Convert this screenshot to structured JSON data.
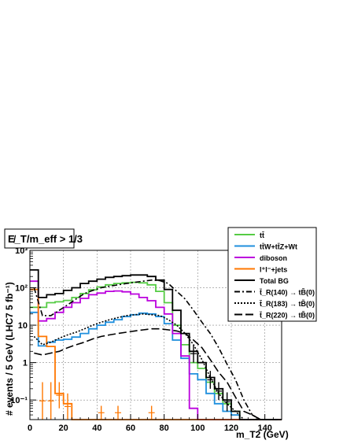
{
  "chart_data": {
    "type": "line",
    "title": "E̸_T/m_eff > 1/3",
    "xlabel": "m_T2 (GeV)",
    "ylabel": "# events / 5 GeV  (LHC7 5 fb⁻¹)",
    "xlim": [
      0,
      150
    ],
    "ylim": [
      0.03,
      1000
    ],
    "yscale": "log",
    "bin_width": 5,
    "grid": true,
    "legend_position": "top-right",
    "x_ticks": [
      "0",
      "20",
      "40",
      "60",
      "80",
      "100",
      "120",
      "140"
    ],
    "y_ticks": [
      {
        "value": 1000,
        "label": "10³"
      },
      {
        "value": 100,
        "label": "10²"
      },
      {
        "value": 10,
        "label": "10"
      },
      {
        "value": 1,
        "label": "1"
      },
      {
        "value": 0.1,
        "label": "10⁻¹"
      }
    ],
    "series": [
      {
        "name": "tt̄",
        "style": "hist",
        "color": "#55cc44",
        "dash": "",
        "values": [
          30,
          30,
          40,
          42,
          46,
          55,
          70,
          88,
          105,
          120,
          130,
          135,
          140,
          135,
          120,
          80,
          40,
          10,
          3,
          1.0,
          0.7,
          0.3,
          0.15,
          0.08,
          0.05,
          0.03,
          0.03,
          0.03,
          0.03,
          0.03
        ]
      },
      {
        "name": "tt̄W+tt̄Z+Wt",
        "style": "hist",
        "color": "#1f8fdd",
        "dash": "",
        "values": [
          22,
          2.8,
          3.5,
          4,
          4.2,
          4.8,
          6,
          8,
          10,
          12,
          14,
          17,
          19,
          21,
          20,
          17,
          11,
          4,
          1.3,
          0.5,
          0.35,
          0.15,
          0.08,
          0.05,
          0.04,
          0.03,
          0.03,
          0.03,
          0.03,
          0.03
        ]
      },
      {
        "name": "diboson",
        "style": "hist",
        "color": "#bb00dd",
        "dash": "",
        "values": [
          150,
          13,
          15,
          22,
          30,
          40,
          52,
          65,
          72,
          80,
          82,
          78,
          68,
          55,
          45,
          30,
          20,
          6,
          1.5,
          0.06,
          0.03,
          0.03,
          0.03,
          0.03,
          0.03,
          0.03,
          0.03,
          0.03,
          0.03,
          0.03
        ]
      },
      {
        "name": "l⁺l⁻+jets",
        "style": "hist",
        "color": "#ff7700",
        "dash": "",
        "values": [
          90,
          5,
          2.7,
          0.15,
          0.08,
          0.03,
          0.03,
          0.03,
          0.03,
          0.03,
          0.03,
          0.03,
          0.03,
          0.03,
          0.03,
          0.03,
          0.03,
          0.03,
          0.03,
          0.03,
          0.03,
          0.03,
          0.03,
          0.03,
          0.03,
          0.03,
          0.03,
          0.03,
          0.03,
          0.03
        ]
      },
      {
        "name": "Total BG",
        "style": "hist",
        "color": "#000000",
        "dash": "",
        "values": [
          300,
          55,
          65,
          70,
          85,
          100,
          130,
          150,
          170,
          190,
          200,
          210,
          220,
          220,
          200,
          160,
          90,
          25,
          6,
          2.0,
          1.0,
          0.4,
          0.2,
          0.1,
          0.05,
          0.03,
          0.03,
          0.03,
          0.03,
          0.03
        ]
      },
      {
        "name": "t̃_R(140) → tB̃(0)",
        "style": "line",
        "color": "#000000",
        "dash": "7,3,2,3",
        "values": [
          100,
          18,
          18,
          25,
          35,
          50,
          70,
          85,
          100,
          110,
          120,
          130,
          140,
          150,
          160,
          155,
          130,
          80,
          50,
          25,
          12,
          6,
          2.5,
          0.9,
          0.35,
          0.1,
          0.04,
          0.03,
          0.03,
          0.03
        ]
      },
      {
        "name": "t̃_R(183) → tB̃(0)",
        "style": "line",
        "color": "#000000",
        "dash": "2,2",
        "values": [
          5,
          3,
          3.5,
          4.5,
          5.5,
          6.5,
          8,
          10,
          12,
          14,
          16,
          18,
          19,
          20,
          19,
          18,
          14,
          10,
          6,
          3,
          1.2,
          0.4,
          0.15,
          0.08,
          0.05,
          0.03,
          0.03,
          0.03,
          0.03,
          0.03
        ]
      },
      {
        "name": "t̃_R(220) → tB̃(0)",
        "style": "line",
        "color": "#000000",
        "dash": "10,4",
        "values": [
          1.8,
          1.6,
          1.8,
          2.0,
          2.5,
          3.0,
          3.5,
          4.3,
          5.0,
          5.5,
          6.0,
          6.5,
          7.0,
          7.5,
          8.0,
          8.0,
          7.5,
          7.0,
          6.0,
          4.0,
          2.5,
          1.2,
          0.55,
          0.3,
          0.12,
          0.05,
          0.04,
          0.03,
          0.03,
          0.03
        ]
      }
    ],
    "error_bars": [
      {
        "x": 7.5,
        "low": 0.03,
        "high": 0.3,
        "color": "#ff7700"
      },
      {
        "x": 12.5,
        "low": 0.03,
        "high": 0.3,
        "color": "#ff7700"
      },
      {
        "x": 17.5,
        "low": 0.06,
        "high": 0.3,
        "color": "#ff7700"
      },
      {
        "x": 22.5,
        "low": 0.03,
        "high": 0.15,
        "color": "#ff7700"
      },
      {
        "x": 42.5,
        "low": 0.03,
        "high": 0.07,
        "color": "#ff7700"
      },
      {
        "x": 52.5,
        "low": 0.03,
        "high": 0.07,
        "color": "#ff7700"
      },
      {
        "x": 72.5,
        "low": 0.03,
        "high": 0.07,
        "color": "#ff7700"
      },
      {
        "x": 97.5,
        "low": 1.0,
        "high": 3.0,
        "color": "#000000"
      },
      {
        "x": 107.5,
        "low": 0.2,
        "high": 0.6,
        "color": "#000000"
      },
      {
        "x": 112.5,
        "low": 0.1,
        "high": 0.3,
        "color": "#000000"
      },
      {
        "x": 117.5,
        "low": 0.05,
        "high": 0.16,
        "color": "#000000"
      }
    ]
  }
}
